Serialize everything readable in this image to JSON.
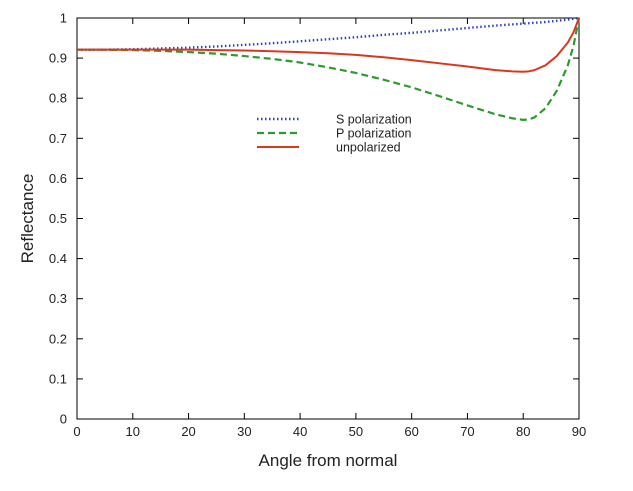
{
  "chart_data": {
    "type": "line",
    "title": "",
    "xlabel": "Angle from normal",
    "ylabel": "Reflectance",
    "xlim": [
      0,
      90
    ],
    "ylim": [
      0,
      1
    ],
    "xticks": [
      0,
      10,
      20,
      30,
      40,
      50,
      60,
      70,
      80,
      90
    ],
    "yticks": [
      0,
      0.1,
      0.2,
      0.3,
      0.4,
      0.5,
      0.6,
      0.7,
      0.8,
      0.9,
      1
    ],
    "ytick_labels": [
      "0",
      "0.1",
      "0.2",
      "0.3",
      "0.4",
      "0.5",
      "0.6",
      "0.7",
      "0.8",
      "0.9",
      "1"
    ],
    "grid": false,
    "legend_position": "upper-center",
    "x": [
      0,
      5,
      10,
      15,
      20,
      25,
      30,
      35,
      40,
      45,
      50,
      55,
      60,
      65,
      70,
      75,
      78,
      80,
      81,
      82,
      84,
      86,
      88,
      89,
      90
    ],
    "series": [
      {
        "name": "S polarization",
        "style": "dotted",
        "color": "#2a3fcf",
        "values": [
          0.921,
          0.921,
          0.922,
          0.924,
          0.926,
          0.929,
          0.933,
          0.937,
          0.942,
          0.947,
          0.952,
          0.958,
          0.963,
          0.969,
          0.975,
          0.981,
          0.984,
          0.986,
          0.987,
          0.988,
          0.99,
          0.993,
          0.996,
          0.998,
          1.0
        ]
      },
      {
        "name": "P polarization",
        "style": "dashed",
        "color": "#2e9a2e",
        "values": [
          0.921,
          0.921,
          0.92,
          0.918,
          0.915,
          0.911,
          0.905,
          0.898,
          0.889,
          0.877,
          0.863,
          0.846,
          0.827,
          0.805,
          0.782,
          0.76,
          0.75,
          0.746,
          0.747,
          0.752,
          0.775,
          0.818,
          0.882,
          0.93,
          1.0
        ]
      },
      {
        "name": "unpolarized",
        "style": "solid",
        "color": "#d8381e",
        "values": [
          0.921,
          0.921,
          0.921,
          0.921,
          0.921,
          0.92,
          0.919,
          0.917,
          0.915,
          0.912,
          0.908,
          0.902,
          0.895,
          0.887,
          0.879,
          0.87,
          0.867,
          0.866,
          0.867,
          0.87,
          0.882,
          0.905,
          0.939,
          0.964,
          1.0
        ]
      }
    ]
  }
}
